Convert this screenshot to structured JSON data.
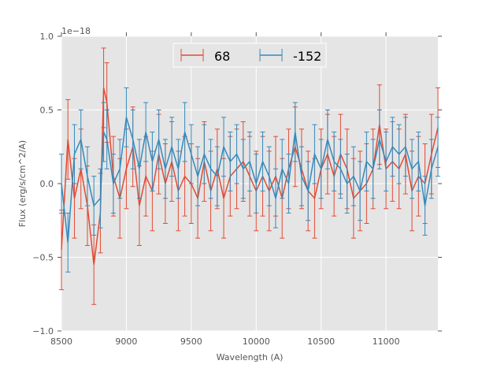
{
  "chart_data": {
    "type": "line",
    "title": "",
    "xlabel": "Wavelength (A)",
    "ylabel": "Flux (erg/s/cm^2/A)",
    "offset_label": "1e−18",
    "xlim": [
      8500,
      11400
    ],
    "ylim": [
      -1.0,
      1.0
    ],
    "xticks": [
      "8500",
      "9000",
      "9500",
      "10000",
      "10500",
      "11000"
    ],
    "xtick_values": [
      8500,
      9000,
      9500,
      10000,
      10500,
      11000
    ],
    "yticks": [
      "−1.0",
      "−0.5",
      "0.0",
      "0.5",
      "1.0"
    ],
    "ytick_values": [
      -1.0,
      -0.5,
      0.0,
      0.5,
      1.0
    ],
    "grid": true,
    "legend_placement": "top-center",
    "x": [
      8500,
      8550,
      8600,
      8650,
      8700,
      8750,
      8800,
      8825,
      8850,
      8900,
      8950,
      9000,
      9050,
      9100,
      9150,
      9200,
      9250,
      9300,
      9350,
      9400,
      9450,
      9500,
      9550,
      9600,
      9650,
      9700,
      9750,
      9800,
      9850,
      9900,
      9950,
      10000,
      10050,
      10100,
      10150,
      10200,
      10250,
      10300,
      10350,
      10400,
      10450,
      10500,
      10550,
      10600,
      10650,
      10700,
      10750,
      10800,
      10850,
      10900,
      10950,
      11000,
      11050,
      11100,
      11150,
      11200,
      11250,
      11300,
      11350,
      11400
    ],
    "series": [
      {
        "name": "68",
        "color": "#e24a33",
        "yerr": 0.27,
        "values": [
          -0.45,
          0.3,
          -0.1,
          0.1,
          -0.15,
          -0.55,
          -0.2,
          0.65,
          0.55,
          0.05,
          -0.1,
          0.1,
          0.25,
          -0.15,
          0.05,
          -0.05,
          0.2,
          0.0,
          0.15,
          -0.05,
          0.05,
          0.0,
          -0.1,
          0.15,
          -0.05,
          0.1,
          -0.1,
          0.05,
          0.1,
          0.15,
          0.05,
          -0.05,
          0.05,
          -0.05,
          0.05,
          -0.1,
          0.1,
          0.25,
          0.1,
          -0.05,
          -0.1,
          0.1,
          0.2,
          0.05,
          0.2,
          0.1,
          -0.1,
          -0.05,
          0.0,
          0.1,
          0.4,
          0.1,
          0.15,
          0.1,
          0.2,
          -0.05,
          0.05,
          0.0,
          0.2,
          0.38
        ]
      },
      {
        "name": "-152",
        "color": "#348abd",
        "yerr": 0.2,
        "values": [
          0.0,
          -0.4,
          0.2,
          0.3,
          0.05,
          -0.15,
          -0.1,
          0.35,
          0.3,
          0.0,
          0.1,
          0.45,
          0.3,
          0.1,
          0.35,
          0.15,
          0.3,
          0.1,
          0.25,
          0.1,
          0.35,
          0.2,
          0.05,
          0.2,
          0.1,
          0.05,
          0.25,
          0.15,
          0.2,
          0.1,
          0.15,
          0.0,
          0.15,
          0.05,
          -0.1,
          0.1,
          0.0,
          0.35,
          0.05,
          -0.05,
          0.2,
          0.1,
          0.3,
          0.15,
          0.1,
          0.0,
          0.05,
          -0.05,
          0.15,
          0.1,
          0.3,
          0.15,
          0.25,
          0.2,
          0.25,
          0.1,
          0.15,
          -0.15,
          0.1,
          0.25
        ]
      }
    ]
  }
}
